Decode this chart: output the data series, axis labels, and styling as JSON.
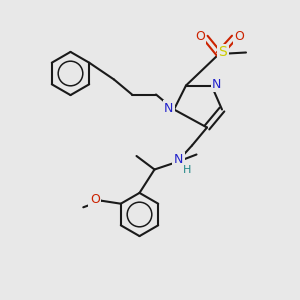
{
  "bg_color": "#e8e8e8",
  "bond_color": "#1a1a1a",
  "n_color": "#2222cc",
  "o_color": "#cc2200",
  "s_color": "#cccc00",
  "h_color": "#228888",
  "figsize": [
    3.0,
    3.0
  ],
  "dpi": 100,
  "xlim": [
    0,
    10
  ],
  "ylim": [
    0,
    10
  ]
}
